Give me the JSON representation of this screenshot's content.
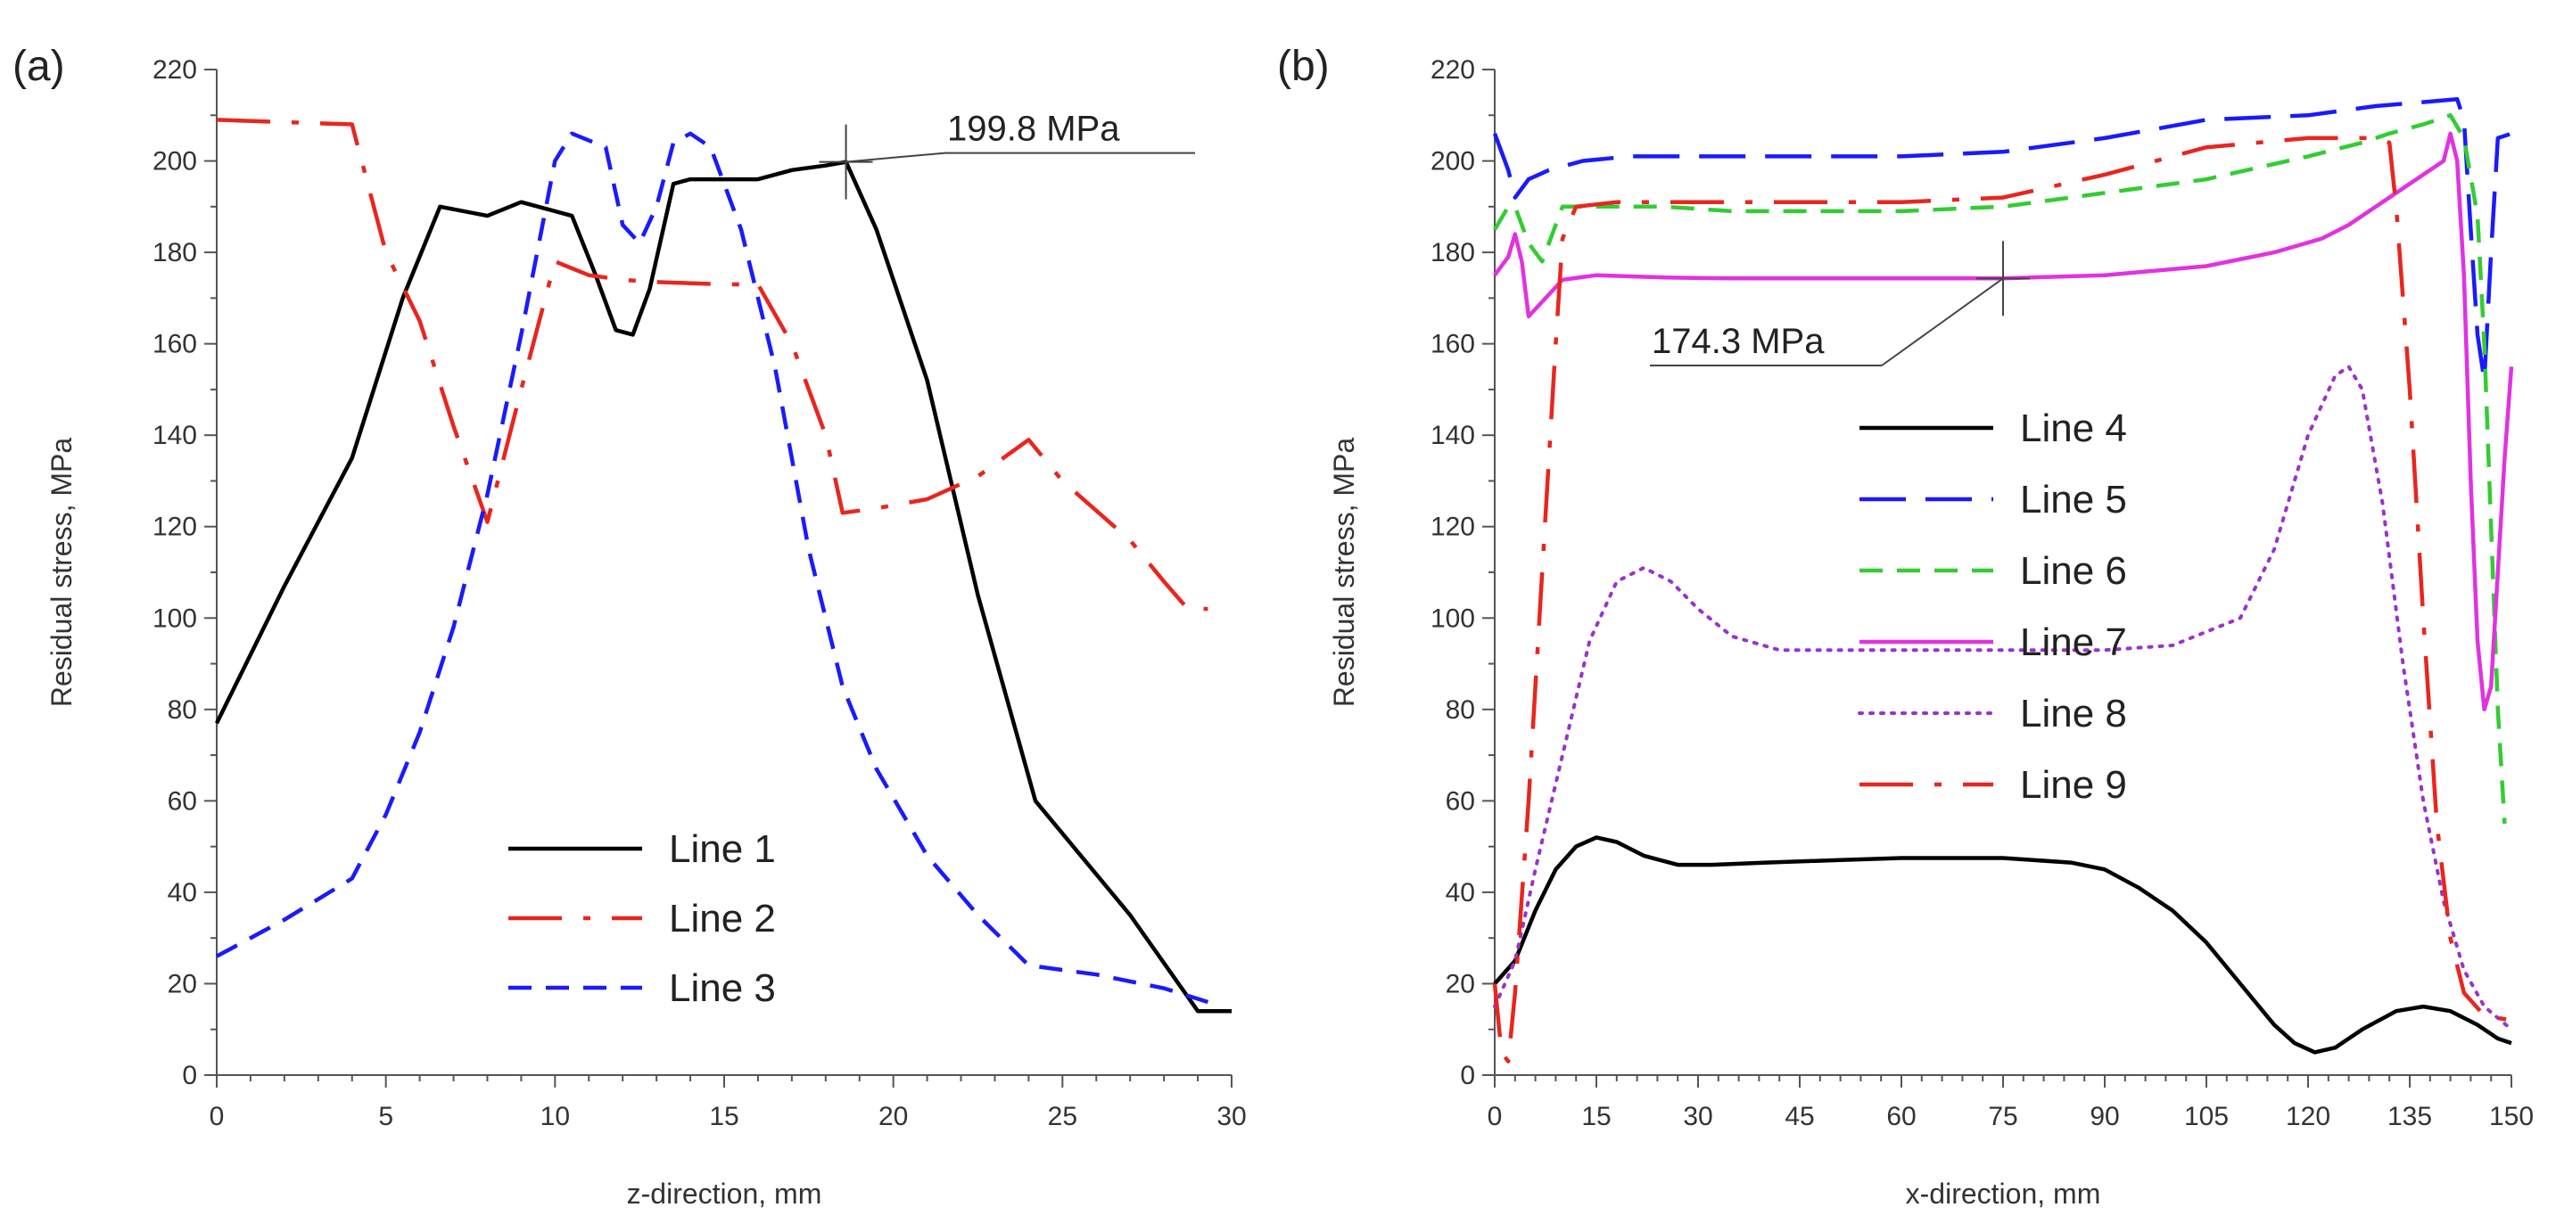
{
  "chart_data": [
    {
      "type": "line",
      "panel_label": "(a)",
      "xlabel": "z-direction, mm",
      "ylabel": "Residual stress, MPa",
      "xlim": [
        0,
        30
      ],
      "ylim": [
        0,
        220
      ],
      "xticks": [
        0,
        5,
        10,
        15,
        20,
        25,
        30
      ],
      "yticks": [
        0,
        20,
        40,
        60,
        80,
        100,
        120,
        140,
        160,
        180,
        200,
        220
      ],
      "legend_position": "bottom-center",
      "series": [
        {
          "name": "Line 1",
          "color": "#000000",
          "style": "solid",
          "points": [
            [
              0,
              77
            ],
            [
              2,
              107
            ],
            [
              4,
              135
            ],
            [
              5.5,
              170
            ],
            [
              6.6,
              190
            ],
            [
              8,
              188
            ],
            [
              9,
              191
            ],
            [
              10,
              189
            ],
            [
              10.5,
              188
            ],
            [
              11.2,
              175
            ],
            [
              11.8,
              163
            ],
            [
              12.3,
              162
            ],
            [
              12.8,
              172
            ],
            [
              13.5,
              195
            ],
            [
              14,
              196
            ],
            [
              16,
              196
            ],
            [
              17,
              198
            ],
            [
              18,
              199
            ],
            [
              18.6,
              199.8
            ],
            [
              19.5,
              185
            ],
            [
              21,
              152
            ],
            [
              22.5,
              105
            ],
            [
              24.2,
              60
            ],
            [
              27,
              35
            ],
            [
              29,
              14
            ],
            [
              30,
              14
            ]
          ]
        },
        {
          "name": "Line 2",
          "color": "#e8261e",
          "style": "dashdot",
          "points": [
            [
              0,
              209
            ],
            [
              2,
              208.5
            ],
            [
              4,
              208
            ],
            [
              5,
              180
            ],
            [
              6,
              165
            ],
            [
              7,
              142
            ],
            [
              8,
              121
            ],
            [
              9,
              150
            ],
            [
              10,
              178
            ],
            [
              11,
              175
            ],
            [
              12,
              174
            ],
            [
              13,
              173.5
            ],
            [
              15,
              173
            ],
            [
              16,
              173
            ],
            [
              17,
              160
            ],
            [
              18,
              140
            ],
            [
              18.5,
              123
            ],
            [
              19.5,
              124
            ],
            [
              21,
              126
            ],
            [
              22.5,
              131
            ],
            [
              24,
              139
            ],
            [
              25,
              130
            ],
            [
              27,
              117
            ],
            [
              28,
              108
            ],
            [
              28.7,
              102
            ],
            [
              29.3,
              102
            ]
          ]
        },
        {
          "name": "Line 3",
          "color": "#1a1aff",
          "style": "dashed",
          "points": [
            [
              0,
              26
            ],
            [
              2,
              34
            ],
            [
              4,
              43
            ],
            [
              5,
              57
            ],
            [
              6,
              75
            ],
            [
              7,
              98
            ],
            [
              8,
              127
            ],
            [
              9,
              162
            ],
            [
              10,
              200
            ],
            [
              10.5,
              206
            ],
            [
              11.5,
              203
            ],
            [
              12,
              186
            ],
            [
              12.5,
              182
            ],
            [
              13,
              190
            ],
            [
              13.5,
              204
            ],
            [
              14,
              206
            ],
            [
              14.6,
              203
            ],
            [
              15.5,
              185
            ],
            [
              16.5,
              155
            ],
            [
              17.5,
              115
            ],
            [
              18.5,
              85
            ],
            [
              19.5,
              67
            ],
            [
              21,
              48
            ],
            [
              22.5,
              35
            ],
            [
              24,
              24
            ],
            [
              26,
              22
            ],
            [
              28,
              19
            ],
            [
              29.3,
              16
            ]
          ]
        }
      ],
      "annotation": {
        "text": "199.8 MPa",
        "x": 18.6,
        "y": 199.8
      }
    },
    {
      "type": "line",
      "panel_label": "(b)",
      "xlabel": "x-direction, mm",
      "ylabel": "Residual stress, MPa",
      "xlim": [
        0,
        150
      ],
      "ylim": [
        0,
        220
      ],
      "xticks": [
        0,
        15,
        30,
        45,
        60,
        75,
        90,
        105,
        120,
        135,
        150
      ],
      "yticks": [
        0,
        20,
        40,
        60,
        80,
        100,
        120,
        140,
        160,
        180,
        200,
        220
      ],
      "legend_position": "center",
      "series": [
        {
          "name": "Line 4",
          "color": "#000000",
          "style": "solid",
          "points": [
            [
              0,
              20
            ],
            [
              3,
              25
            ],
            [
              6,
              36
            ],
            [
              9,
              45
            ],
            [
              12,
              50
            ],
            [
              15,
              52
            ],
            [
              18,
              51
            ],
            [
              22,
              48
            ],
            [
              27,
              46
            ],
            [
              32,
              46
            ],
            [
              40,
              46.5
            ],
            [
              50,
              47
            ],
            [
              60,
              47.5
            ],
            [
              75,
              47.5
            ],
            [
              85,
              46.5
            ],
            [
              90,
              45
            ],
            [
              95,
              41
            ],
            [
              100,
              36
            ],
            [
              105,
              29
            ],
            [
              110,
              20
            ],
            [
              115,
              11
            ],
            [
              118,
              7
            ],
            [
              121,
              5
            ],
            [
              124,
              6
            ],
            [
              128,
              10
            ],
            [
              133,
              14
            ],
            [
              137,
              15
            ],
            [
              141,
              14
            ],
            [
              145,
              11
            ],
            [
              148,
              8
            ],
            [
              150,
              7
            ]
          ]
        },
        {
          "name": "Line 5",
          "color": "#1a1aff",
          "style": "longdash",
          "points": [
            [
              0,
              206
            ],
            [
              2,
              198
            ],
            [
              3,
              192
            ],
            [
              5,
              196
            ],
            [
              8,
              198
            ],
            [
              13,
              200
            ],
            [
              20,
              201
            ],
            [
              40,
              201
            ],
            [
              60,
              201
            ],
            [
              75,
              202
            ],
            [
              90,
              205
            ],
            [
              105,
              209
            ],
            [
              120,
              210
            ],
            [
              130,
              212
            ],
            [
              138,
              213
            ],
            [
              142,
              213.5
            ],
            [
              143,
              209
            ],
            [
              144,
              185
            ],
            [
              145,
              162
            ],
            [
              146,
              152
            ],
            [
              147,
              180
            ],
            [
              148,
              205
            ],
            [
              150,
              206
            ]
          ]
        },
        {
          "name": "Line 6",
          "color": "#33cc33",
          "style": "dashed",
          "points": [
            [
              0,
              185
            ],
            [
              2,
              190
            ],
            [
              3,
              190
            ],
            [
              5,
              182
            ],
            [
              7,
              178
            ],
            [
              10,
              190
            ],
            [
              15,
              190
            ],
            [
              25,
              190
            ],
            [
              35,
              189
            ],
            [
              45,
              189
            ],
            [
              60,
              189
            ],
            [
              75,
              190
            ],
            [
              90,
              193
            ],
            [
              105,
              196
            ],
            [
              120,
              201
            ],
            [
              128,
              204
            ],
            [
              132,
              206
            ],
            [
              137,
              208
            ],
            [
              141,
              210
            ],
            [
              143,
              205
            ],
            [
              145,
              188
            ],
            [
              146,
              160
            ],
            [
              147,
              120
            ],
            [
              148,
              80
            ],
            [
              149,
              55
            ]
          ]
        },
        {
          "name": "Line 7",
          "color": "#e033e0",
          "style": "solid",
          "points": [
            [
              0,
              175
            ],
            [
              2,
              179
            ],
            [
              3,
              184
            ],
            [
              4,
              178
            ],
            [
              5,
              166
            ],
            [
              10,
              174
            ],
            [
              15,
              175
            ],
            [
              25,
              174.5
            ],
            [
              35,
              174.3
            ],
            [
              45,
              174.3
            ],
            [
              60,
              174.3
            ],
            [
              75,
              174.3
            ],
            [
              90,
              175
            ],
            [
              105,
              177
            ],
            [
              115,
              180
            ],
            [
              122,
              183
            ],
            [
              126,
              186
            ],
            [
              140,
              200
            ],
            [
              141,
              206
            ],
            [
              142,
              200
            ],
            [
              143,
              175
            ],
            [
              144,
              130
            ],
            [
              145,
              95
            ],
            [
              146,
              80
            ],
            [
              147,
              85
            ],
            [
              148,
              110
            ],
            [
              149,
              135
            ],
            [
              150,
              155
            ]
          ]
        },
        {
          "name": "Line 8",
          "color": "#9933cc",
          "style": "dotted",
          "points": [
            [
              0,
              15
            ],
            [
              3,
              25
            ],
            [
              6,
              45
            ],
            [
              10,
              70
            ],
            [
              14,
              95
            ],
            [
              18,
              108
            ],
            [
              22,
              111
            ],
            [
              26,
              108
            ],
            [
              30,
              102
            ],
            [
              35,
              96
            ],
            [
              42,
              93
            ],
            [
              55,
              93
            ],
            [
              65,
              93
            ],
            [
              75,
              93
            ],
            [
              90,
              93
            ],
            [
              100,
              94
            ],
            [
              110,
              100
            ],
            [
              115,
              115
            ],
            [
              120,
              140
            ],
            [
              124,
              153
            ],
            [
              126,
              155
            ],
            [
              128,
              150
            ],
            [
              131,
              125
            ],
            [
              134,
              90
            ],
            [
              137,
              60
            ],
            [
              140,
              38
            ],
            [
              143,
              23
            ],
            [
              146,
              15
            ],
            [
              150,
              10
            ]
          ]
        },
        {
          "name": "Line 9",
          "color": "#e8261e",
          "style": "dashdot",
          "points": [
            [
              0,
              20
            ],
            [
              1,
              5
            ],
            [
              2,
              3
            ],
            [
              3,
              18
            ],
            [
              5,
              60
            ],
            [
              7,
              110
            ],
            [
              9,
              160
            ],
            [
              10,
              183
            ],
            [
              12,
              190
            ],
            [
              18,
              191
            ],
            [
              30,
              191
            ],
            [
              45,
              191
            ],
            [
              60,
              191
            ],
            [
              75,
              192
            ],
            [
              90,
              197
            ],
            [
              105,
              203
            ],
            [
              120,
              205
            ],
            [
              130,
              205
            ],
            [
              132,
              204
            ],
            [
              133,
              190
            ],
            [
              135,
              150
            ],
            [
              137,
              100
            ],
            [
              139,
              55
            ],
            [
              141,
              30
            ],
            [
              143,
              18
            ],
            [
              146,
              13
            ],
            [
              150,
              12
            ]
          ]
        }
      ],
      "annotation": {
        "text": "174.3 MPa",
        "x": 75,
        "y": 174.3
      }
    }
  ]
}
